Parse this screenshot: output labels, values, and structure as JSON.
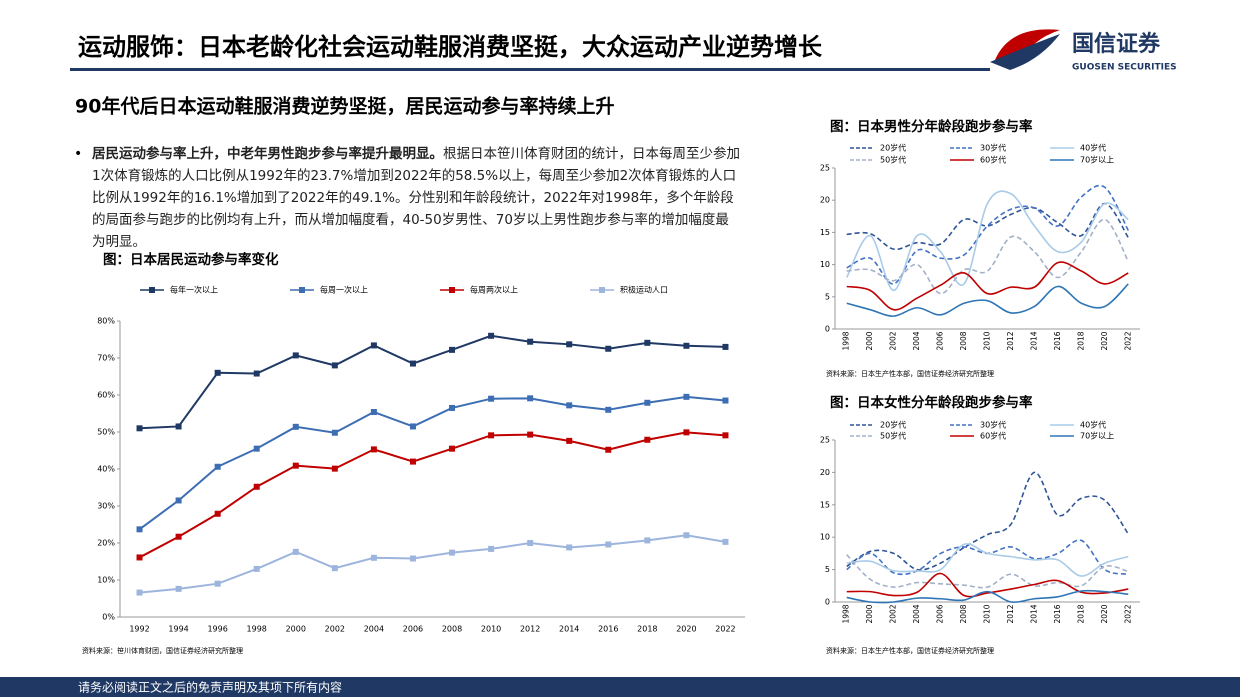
{
  "header": {
    "title": "运动服饰：日本老龄化社会运动鞋服消费坚挺，大众运动产业逆势增长",
    "logo_cn": "国信证券",
    "logo_en": "GUOSEN SECURITIES"
  },
  "subtitle": "90年代后日本运动鞋服消费逆势坚挺，居民运动参与率持续上升",
  "bullet": {
    "bold": "居民运动参与率上升，中老年男性跑步参与率提升最明显。",
    "text": "根据日本笹川体育财团的统计，日本每周至少参加1次体育锻炼的人口比例从1992年的23.7%增加到2022年的58.5%以上，每周至少参加2次体育锻炼的人口比例从1992年的16.1%增加到了2022年的49.1%。分性别和年龄段统计，2022年对1998年，多个年龄段的局面参与跑步的比例均有上升，而从增加幅度看，40-50岁男性、70岁以上男性跑步参与率的增加幅度最为明显。"
  },
  "chart_data": [
    {
      "type": "line",
      "title": "图：日本居民运动参与率变化",
      "source": "资料来源：笹川体育财团，国信证券经济研究所整理",
      "marker": "square",
      "smooth": false,
      "categories": [
        "1992",
        "1994",
        "1996",
        "1998",
        "2000",
        "2002",
        "2004",
        "2006",
        "2008",
        "2010",
        "2012",
        "2014",
        "2016",
        "2018",
        "2020",
        "2022"
      ],
      "series": [
        {
          "name": "每年一次以上",
          "color": "#1f3864",
          "dashed": false,
          "values": [
            51,
            51.5,
            66,
            65.8,
            70.7,
            68,
            73.4,
            68.5,
            72.2,
            76,
            74.4,
            73.7,
            72.5,
            74.1,
            73.3,
            73
          ]
        },
        {
          "name": "每周一次以上",
          "color": "#3d6eb4",
          "dashed": false,
          "values": [
            23.7,
            31.5,
            40.6,
            45.5,
            51.4,
            49.8,
            55.4,
            51.5,
            56.5,
            59,
            59.1,
            57.2,
            56,
            57.9,
            59.5,
            58.5
          ]
        },
        {
          "name": "每周两次以上",
          "color": "#c00000",
          "dashed": false,
          "values": [
            16.1,
            21.7,
            27.9,
            35.2,
            40.9,
            40.1,
            45.3,
            42,
            45.5,
            49.1,
            49.3,
            47.6,
            45.2,
            47.9,
            49.9,
            49.1
          ]
        },
        {
          "name": "积极运动人口",
          "color": "#9db5dd",
          "dashed": false,
          "values": [
            6.6,
            7.6,
            9,
            13,
            17.6,
            13.2,
            16,
            15.8,
            17.4,
            18.4,
            20,
            18.8,
            19.6,
            20.7,
            22.1,
            20.3
          ]
        }
      ],
      "ylim": [
        0,
        80
      ],
      "yticks": [
        {
          "value": 0,
          "label": "0%"
        },
        {
          "value": 10,
          "label": "10%"
        },
        {
          "value": 20,
          "label": "20%"
        },
        {
          "value": 30,
          "label": "30%"
        },
        {
          "value": 40,
          "label": "40%"
        },
        {
          "value": 50,
          "label": "50%"
        },
        {
          "value": 60,
          "label": "60%"
        },
        {
          "value": 70,
          "label": "70%"
        },
        {
          "value": 80,
          "label": "80%"
        }
      ]
    },
    {
      "type": "line",
      "title": "图：日本男性分年龄段跑步参与率",
      "source": "资料来源：日本生产性本部，国信证券经济研究所整理",
      "marker": "none",
      "smooth": true,
      "categories": [
        "1998",
        "2000",
        "2002",
        "2004",
        "2006",
        "2008",
        "2010",
        "2012",
        "2014",
        "2016",
        "2018",
        "2020",
        "2022"
      ],
      "series": [
        {
          "name": "20岁代",
          "color": "#2f5597",
          "dashed": true,
          "values": [
            14.7,
            14.8,
            12.4,
            13.4,
            13.2,
            17,
            16,
            17.8,
            18.8,
            16.5,
            14.5,
            19.5,
            14.2
          ]
        },
        {
          "name": "30岁代",
          "color": "#4472c4",
          "dashed": true,
          "values": [
            9.5,
            11,
            7,
            12.2,
            11,
            11.5,
            16,
            18.6,
            18.8,
            16,
            20.5,
            22,
            15.3
          ]
        },
        {
          "name": "40岁代",
          "color": "#a9cbe8",
          "dashed": false,
          "values": [
            8,
            14.5,
            6,
            14.5,
            12,
            7,
            19.5,
            21,
            16,
            12,
            13.5,
            19.5,
            17
          ]
        },
        {
          "name": "50岁代",
          "color": "#a3b1c8",
          "dashed": true,
          "values": [
            9,
            9.2,
            7.5,
            10,
            5.5,
            9.2,
            9,
            14.3,
            12,
            8,
            12,
            17,
            10.5
          ]
        },
        {
          "name": "60岁代",
          "color": "#c00000",
          "dashed": false,
          "values": [
            6.6,
            6,
            3,
            4.8,
            6.8,
            8.7,
            5.5,
            6.5,
            6.5,
            10.3,
            9,
            7,
            8.7
          ]
        },
        {
          "name": "70岁以上",
          "color": "#2e75b6",
          "dashed": false,
          "values": [
            4,
            3,
            2,
            3.3,
            2.2,
            4,
            4.4,
            2.5,
            3.5,
            6.6,
            4,
            3.5,
            7
          ]
        }
      ],
      "ylim": [
        0,
        25
      ],
      "yticks": [
        0,
        5,
        10,
        15,
        20,
        25
      ]
    },
    {
      "type": "line",
      "title": "图：日本女性分年龄段跑步参与率",
      "source": "资料来源：日本生产性本部，国信证券经济研究所整理",
      "marker": "none",
      "smooth": true,
      "categories": [
        "1998",
        "2000",
        "2002",
        "2004",
        "2006",
        "2008",
        "2010",
        "2012",
        "2014",
        "2016",
        "2018",
        "2020",
        "2022"
      ],
      "series": [
        {
          "name": "20岁代",
          "color": "#2f5597",
          "dashed": true,
          "values": [
            5.5,
            7.8,
            7.5,
            5,
            6,
            8.4,
            10.4,
            12,
            20,
            13.4,
            16,
            15.7,
            10.5
          ]
        },
        {
          "name": "30岁代",
          "color": "#4472c4",
          "dashed": true,
          "values": [
            5,
            7.5,
            4.5,
            4.8,
            7.5,
            8.5,
            7.5,
            8.5,
            6.7,
            7.5,
            9.5,
            5,
            4.3
          ]
        },
        {
          "name": "40岁代",
          "color": "#a9cbe8",
          "dashed": false,
          "values": [
            6,
            6.3,
            4.8,
            4.8,
            5,
            8.9,
            7.5,
            7,
            6.5,
            6.5,
            4,
            6,
            7
          ]
        },
        {
          "name": "50岁代",
          "color": "#a3b1c8",
          "dashed": true,
          "values": [
            7.3,
            3.5,
            2.3,
            3,
            2.8,
            2.6,
            2.3,
            4.3,
            2.5,
            3,
            2.5,
            5.5,
            4.7
          ]
        },
        {
          "name": "60岁代",
          "color": "#c00000",
          "dashed": false,
          "values": [
            1.6,
            1.6,
            1,
            1.5,
            4.4,
            1,
            1.4,
            2,
            2.7,
            3.3,
            1.5,
            1.4,
            2
          ]
        },
        {
          "name": "70岁以上",
          "color": "#2e75b6",
          "dashed": false,
          "values": [
            0.7,
            0,
            0,
            0.6,
            0.5,
            0.3,
            1.6,
            0,
            0.5,
            0.8,
            1.7,
            1.6,
            1.2
          ]
        }
      ],
      "ylim": [
        0,
        25
      ],
      "yticks": [
        0,
        5,
        10,
        15,
        20,
        25
      ]
    }
  ],
  "footer": "请务必阅读正文之后的免责声明及其项下所有内容"
}
